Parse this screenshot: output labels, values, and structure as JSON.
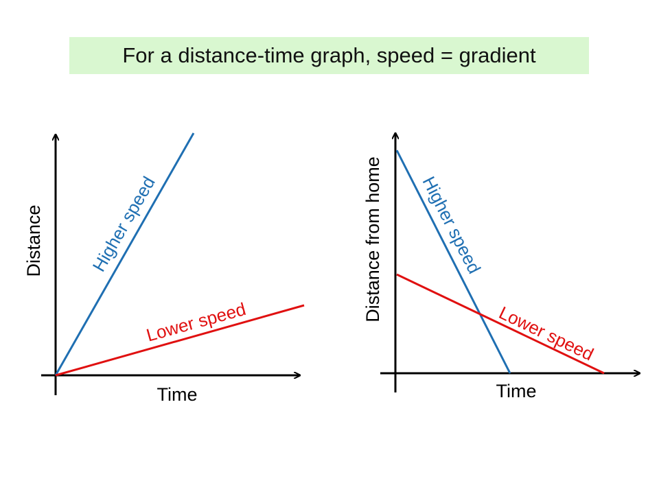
{
  "title": "For a distance-time graph, speed = gradient",
  "colors": {
    "higher_speed": "#1f6fb2",
    "lower_speed": "#e01010",
    "axis": "#000000",
    "title_background": "#d9f7d0"
  },
  "left_graph": {
    "x_label": "Time",
    "y_label": "Distance",
    "higher_label": "Higher speed",
    "lower_label": "Lower speed"
  },
  "right_graph": {
    "x_label": "Time",
    "y_label": "Distance from home",
    "higher_label": "Higher speed",
    "lower_label": "Lower speed"
  }
}
